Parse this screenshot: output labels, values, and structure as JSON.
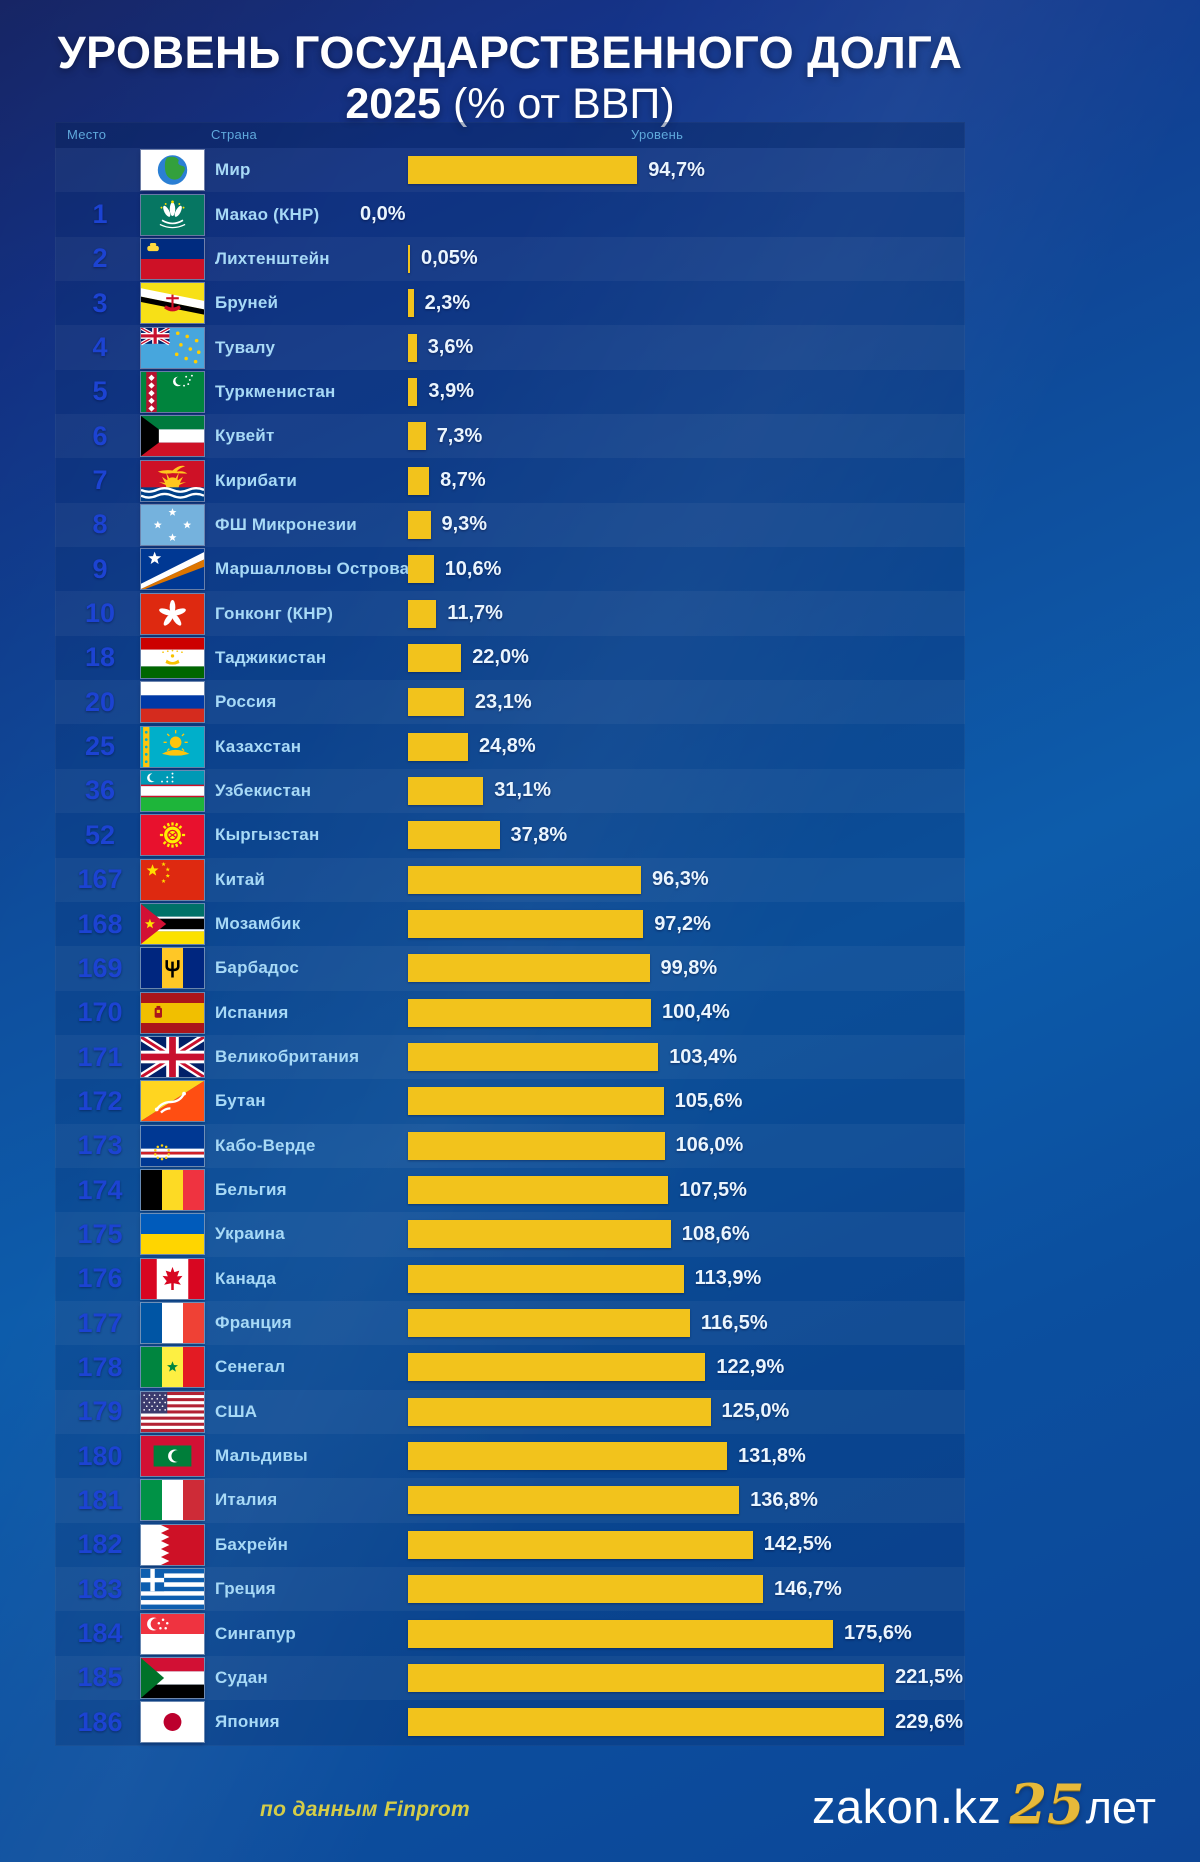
{
  "title": {
    "line1": "УРОВЕНЬ ГОСУДАРСТВЕННОГО ДОЛГА",
    "line2_year": "2025",
    "line2_unit": "(% от ВВП)"
  },
  "columns": {
    "rank": "Место",
    "country": "Страна",
    "level": "Уровень"
  },
  "footer": {
    "source": "по данным Finprom",
    "brand": "zakon.kz",
    "anniversary_number": "25",
    "anniversary_word": "лет"
  },
  "colors": {
    "bar_gold": "#f2c31c",
    "rank_blue": "#1c43d2",
    "country_text": "#a7d9f6",
    "value_text": "#eaf5fe",
    "background_blue": "#0d57a5",
    "header_text": "#5fa9dc",
    "source_text": "#d5cd48",
    "brand_gold": "#e7b93a"
  },
  "chart_data": {
    "type": "bar",
    "orientation": "horizontal",
    "title": "УРОВЕНЬ ГОСУДАРСТВЕННОГО ДОЛГА 2025 (% от ВВП)",
    "unit": "% от ВВП",
    "source": "по данным Finprom",
    "xlim": [
      0,
      232
    ],
    "grid": false,
    "legend": "none",
    "rows": [
      {
        "rank": "",
        "country": "Мир",
        "flag": "world",
        "value": 94.7,
        "label": "94,7%"
      },
      {
        "rank": "1",
        "country": "Макао (КНР)",
        "flag": "macau",
        "value": 0.0,
        "label": "0,0%"
      },
      {
        "rank": "2",
        "country": "Лихтенштейн",
        "flag": "liechtenstein",
        "value": 0.05,
        "label": "0,05%"
      },
      {
        "rank": "3",
        "country": "Бруней",
        "flag": "brunei",
        "value": 2.3,
        "label": "2,3%"
      },
      {
        "rank": "4",
        "country": "Тувалу",
        "flag": "tuvalu",
        "value": 3.6,
        "label": "3,6%"
      },
      {
        "rank": "5",
        "country": "Туркменистан",
        "flag": "turkmenistan",
        "value": 3.9,
        "label": "3,9%"
      },
      {
        "rank": "6",
        "country": "Кувейт",
        "flag": "kuwait",
        "value": 7.3,
        "label": "7,3%"
      },
      {
        "rank": "7",
        "country": "Кирибати",
        "flag": "kiribati",
        "value": 8.7,
        "label": "8,7%"
      },
      {
        "rank": "8",
        "country": "ФШ Микронезии",
        "flag": "micronesia",
        "value": 9.3,
        "label": "9,3%"
      },
      {
        "rank": "9",
        "country": "Маршалловы Острова",
        "flag": "marshall",
        "value": 10.6,
        "label": "10,6%"
      },
      {
        "rank": "10",
        "country": "Гонконг (КНР)",
        "flag": "hongkong",
        "value": 11.7,
        "label": "11,7%"
      },
      {
        "rank": "18",
        "country": "Таджикистан",
        "flag": "tajikistan",
        "value": 22.0,
        "label": "22,0%"
      },
      {
        "rank": "20",
        "country": "Россия",
        "flag": "russia",
        "value": 23.1,
        "label": "23,1%"
      },
      {
        "rank": "25",
        "country": "Казахстан",
        "flag": "kazakhstan",
        "value": 24.8,
        "label": "24,8%"
      },
      {
        "rank": "36",
        "country": "Узбекистан",
        "flag": "uzbekistan",
        "value": 31.1,
        "label": "31,1%"
      },
      {
        "rank": "52",
        "country": "Кыргызстан",
        "flag": "kyrgyzstan",
        "value": 37.8,
        "label": "37,8%"
      },
      {
        "rank": "167",
        "country": "Китай",
        "flag": "china",
        "value": 96.3,
        "label": "96,3%"
      },
      {
        "rank": "168",
        "country": "Мозамбик",
        "flag": "mozambique",
        "value": 97.2,
        "label": "97,2%"
      },
      {
        "rank": "169",
        "country": "Барбадос",
        "flag": "barbados",
        "value": 99.8,
        "label": "99,8%"
      },
      {
        "rank": "170",
        "country": "Испания",
        "flag": "spain",
        "value": 100.4,
        "label": "100,4%"
      },
      {
        "rank": "171",
        "country": "Великобритания",
        "flag": "uk",
        "value": 103.4,
        "label": "103,4%"
      },
      {
        "rank": "172",
        "country": "Бутан",
        "flag": "bhutan",
        "value": 105.6,
        "label": "105,6%"
      },
      {
        "rank": "173",
        "country": "Кабо-Верде",
        "flag": "capeverde",
        "value": 106.0,
        "label": "106,0%"
      },
      {
        "rank": "174",
        "country": "Бельгия",
        "flag": "belgium",
        "value": 107.5,
        "label": "107,5%"
      },
      {
        "rank": "175",
        "country": "Украина",
        "flag": "ukraine",
        "value": 108.6,
        "label": "108,6%"
      },
      {
        "rank": "176",
        "country": "Канада",
        "flag": "canada",
        "value": 113.9,
        "label": "113,9%"
      },
      {
        "rank": "177",
        "country": "Франция",
        "flag": "france",
        "value": 116.5,
        "label": "116,5%"
      },
      {
        "rank": "178",
        "country": "Сенегал",
        "flag": "senegal",
        "value": 122.9,
        "label": "122,9%"
      },
      {
        "rank": "179",
        "country": "США",
        "flag": "usa",
        "value": 125.0,
        "label": "125,0%"
      },
      {
        "rank": "180",
        "country": "Мальдивы",
        "flag": "maldives",
        "value": 131.8,
        "label": "131,8%"
      },
      {
        "rank": "181",
        "country": "Италия",
        "flag": "italy",
        "value": 136.8,
        "label": "136,8%"
      },
      {
        "rank": "182",
        "country": "Бахрейн",
        "flag": "bahrain",
        "value": 142.5,
        "label": "142,5%"
      },
      {
        "rank": "183",
        "country": "Греция",
        "flag": "greece",
        "value": 146.7,
        "label": "146,7%"
      },
      {
        "rank": "184",
        "country": "Сингапур",
        "flag": "singapore",
        "value": 175.6,
        "label": "175,6%"
      },
      {
        "rank": "185",
        "country": "Судан",
        "flag": "sudan",
        "value": 221.5,
        "label": "221,5%"
      },
      {
        "rank": "186",
        "country": "Япония",
        "flag": "japan",
        "value": 229.6,
        "label": "229,6%"
      }
    ]
  }
}
